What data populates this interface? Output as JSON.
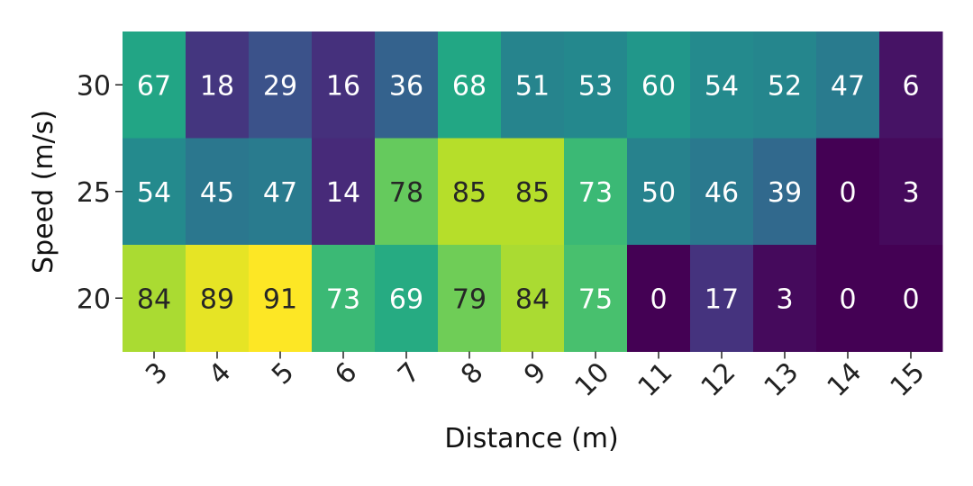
{
  "chart_data": {
    "type": "heatmap",
    "title": "",
    "xlabel": "Distance (m)",
    "ylabel": "Speed (m/s)",
    "x_categories": [
      "3",
      "4",
      "5",
      "6",
      "7",
      "8",
      "9",
      "10",
      "11",
      "12",
      "13",
      "14",
      "15"
    ],
    "y_categories": [
      "30",
      "25",
      "20"
    ],
    "values": [
      [
        67,
        18,
        29,
        16,
        36,
        68,
        51,
        53,
        60,
        54,
        52,
        47,
        6
      ],
      [
        54,
        45,
        47,
        14,
        78,
        85,
        85,
        73,
        50,
        46,
        39,
        0,
        3
      ],
      [
        84,
        89,
        91,
        73,
        69,
        79,
        84,
        75,
        0,
        17,
        3,
        0,
        0
      ]
    ],
    "value_range": [
      0,
      91
    ],
    "colormap": "viridis",
    "annotations": true,
    "grid": false,
    "colorbar": false
  }
}
